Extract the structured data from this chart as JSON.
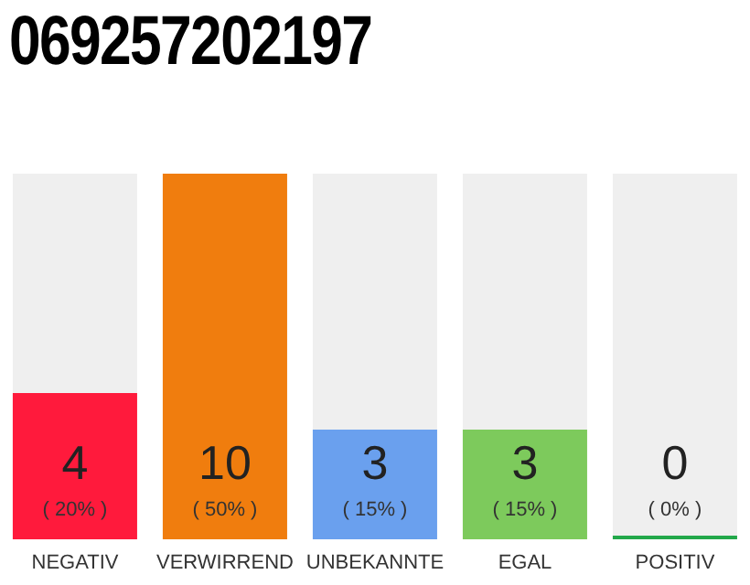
{
  "chart_data": {
    "type": "bar",
    "title": "069257202197",
    "categories": [
      "NEGATIV",
      "VERWIRREND",
      "UNBEKANNTE",
      "EGAL",
      "POSITIV"
    ],
    "values": [
      4,
      10,
      3,
      3,
      0
    ],
    "colors": [
      "#ff1a3c",
      "#f07d0e",
      "#6aa0ee",
      "#7dca5c",
      "#22a84a"
    ],
    "value_labels": [
      "4\n( 20% )",
      "10\n( 50% )",
      "3\n( 15% )",
      "3\n( 15% )",
      "0\n( 0% )"
    ],
    "grid": false,
    "legend": false
  }
}
